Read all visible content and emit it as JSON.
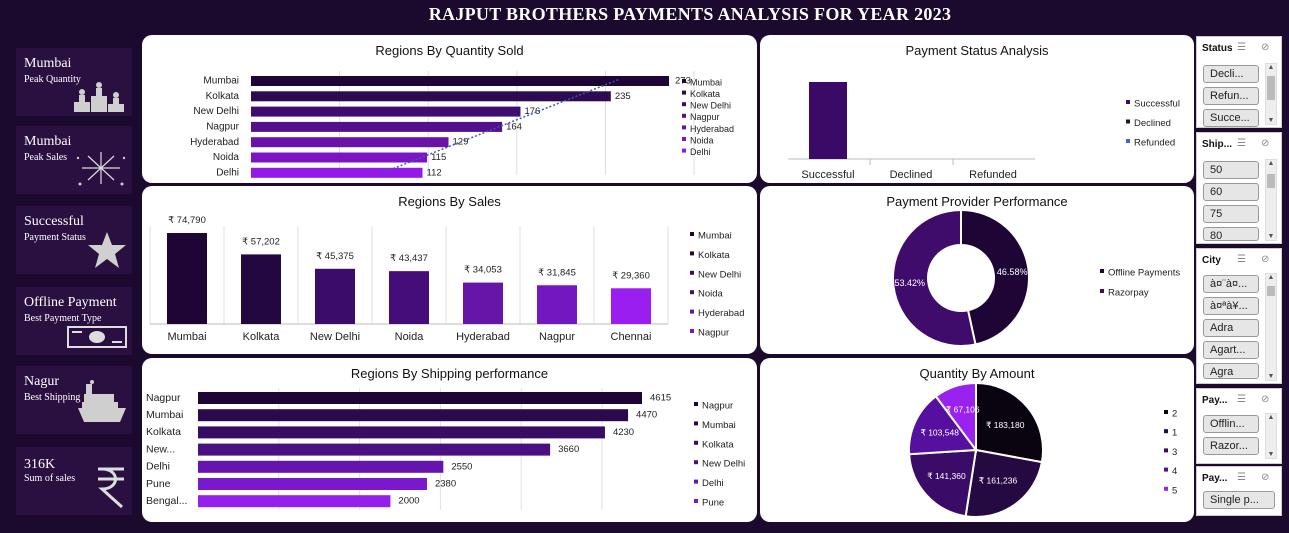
{
  "title": "RAJPUT BROTHERS PAYMENTS ANALYSIS FOR YEAR 2023",
  "kpis": [
    {
      "value": "Mumbai",
      "label": "Peak Quantity",
      "icon": "podium-icon"
    },
    {
      "value": "Mumbai",
      "label": "Peak Sales",
      "icon": "fireworks-icon"
    },
    {
      "value": "Successful",
      "label": "Payment Status",
      "icon": "star-icon"
    },
    {
      "value": "Offline Payment",
      "label": "Best Payment Type",
      "icon": "cash-icon"
    },
    {
      "value": "Nagur",
      "label": "Best Shipping",
      "icon": "ship-icon"
    },
    {
      "value": "316K",
      "label": "Sum of sales",
      "icon": "rupee-icon"
    }
  ],
  "chart_data": [
    {
      "type": "bar",
      "title": "Regions By Quantity Sold",
      "orientation": "horizontal",
      "categories": [
        "Mumbai",
        "Kolkata",
        "New Delhi",
        "Nagpur",
        "Hyderabad",
        "Noida",
        "Delhi"
      ],
      "values": [
        273,
        235,
        176,
        164,
        129,
        115,
        112
      ],
      "labels": [
        "273",
        "235",
        "176",
        "164",
        "129",
        "115",
        "112"
      ],
      "legend": [
        "Mumbai",
        "Kolkata",
        "New Delhi",
        "Nagpur",
        "Hyderabad",
        "Noida",
        "Delhi"
      ],
      "colors": [
        "#1e0535",
        "#2d0a52",
        "#3f0d70",
        "#540f8d",
        "#6a12a8",
        "#7c14c4",
        "#9419e6"
      ],
      "trendline": true,
      "grid": true,
      "legend_position": "right"
    },
    {
      "type": "bar",
      "title": "Regions By Sales",
      "categories": [
        "Mumbai",
        "Kolkata",
        "New Delhi",
        "Noida",
        "Hyderabad",
        "Nagpur",
        "Chennai"
      ],
      "values": [
        74790,
        57202,
        45375,
        43437,
        34053,
        31845,
        29360
      ],
      "labels": [
        "₹ 74,790",
        "₹ 57,202",
        "₹ 45,375",
        "₹ 43,437",
        "₹ 34,053",
        "₹ 31,845",
        "₹ 29,360"
      ],
      "legend": [
        "Mumbai",
        "Kolkata",
        "New Delhi",
        "Noida",
        "Hyderabad",
        "Nagpur"
      ],
      "colors": [
        "#1e0535",
        "#220740",
        "#3c0c6a",
        "#440d7a",
        "#6515a8",
        "#7318c0",
        "#9b1ef0"
      ],
      "grid": true,
      "legend_position": "right"
    },
    {
      "type": "bar",
      "title": "Regions By Shipping performance",
      "orientation": "horizontal",
      "categories": [
        "Nagpur",
        "Mumbai",
        "Kolkata",
        "New...",
        "Delhi",
        "Pune",
        "Bengal..."
      ],
      "values": [
        4615,
        4470,
        4230,
        3660,
        2550,
        2380,
        2000
      ],
      "labels": [
        "4615",
        "4470",
        "4230",
        "3660",
        "2550",
        "2380",
        "2000"
      ],
      "legend": [
        "Nagpur",
        "Mumbai",
        "Kolkata",
        "New Delhi",
        "Delhi",
        "Pune"
      ],
      "colors": [
        "#1e0535",
        "#2a0a4c",
        "#370c62",
        "#4a0f80",
        "#6614b0",
        "#7a18cc",
        "#9420ec"
      ],
      "grid": true,
      "legend_position": "right"
    },
    {
      "type": "bar",
      "title": "Payment Status Analysis",
      "categories": [
        "Successful",
        "Declined",
        "Refunded"
      ],
      "values": [
        1,
        0,
        0
      ],
      "legend": [
        "Successful",
        "Declined",
        "Refunded"
      ],
      "colors": [
        "#3a0a66",
        "#1a1a1a",
        "#3a6ad4"
      ],
      "legend_position": "right"
    },
    {
      "type": "pie",
      "subtype": "donut",
      "title": "Payment Provider Performance",
      "categories": [
        "Offline Payments",
        "Razorpay"
      ],
      "values": [
        46.58,
        53.42
      ],
      "labels": [
        "46.58%",
        "53.42%"
      ],
      "colors": [
        "#1e0535",
        "#3f0c6c"
      ],
      "legend_position": "right"
    },
    {
      "type": "pie",
      "title": "Quantity By Amount",
      "categories": [
        "2",
        "1",
        "3",
        "4",
        "5"
      ],
      "values": [
        183180,
        161236,
        141360,
        103548,
        67106
      ],
      "labels": [
        "₹ 183,180",
        "₹ 161,236",
        "₹ 141,360",
        "₹ 103,548",
        "₹ 67,106"
      ],
      "colors": [
        "#0a0410",
        "#240a40",
        "#3a0c68",
        "#5610a0",
        "#9a22ee"
      ],
      "legend_position": "right"
    }
  ],
  "slicers": [
    {
      "header": "Status",
      "items": [
        "Decli...",
        "Refun...",
        "Succe..."
      ]
    },
    {
      "header": "Ship...",
      "items": [
        "50",
        "60",
        "75",
        "80"
      ]
    },
    {
      "header": "City",
      "items": [
        "à¤¨à¤...",
        "à¤ªà¥...",
        "Adra",
        "Agart...",
        "Agra"
      ]
    },
    {
      "header": "Pay...",
      "items": [
        "Offlin...",
        "Razor..."
      ]
    },
    {
      "header": "Pay...",
      "items": [
        "Single p..."
      ]
    }
  ],
  "icons": {
    "multi_select": "multi-select-icon",
    "clear_filter": "clear-filter-icon"
  }
}
